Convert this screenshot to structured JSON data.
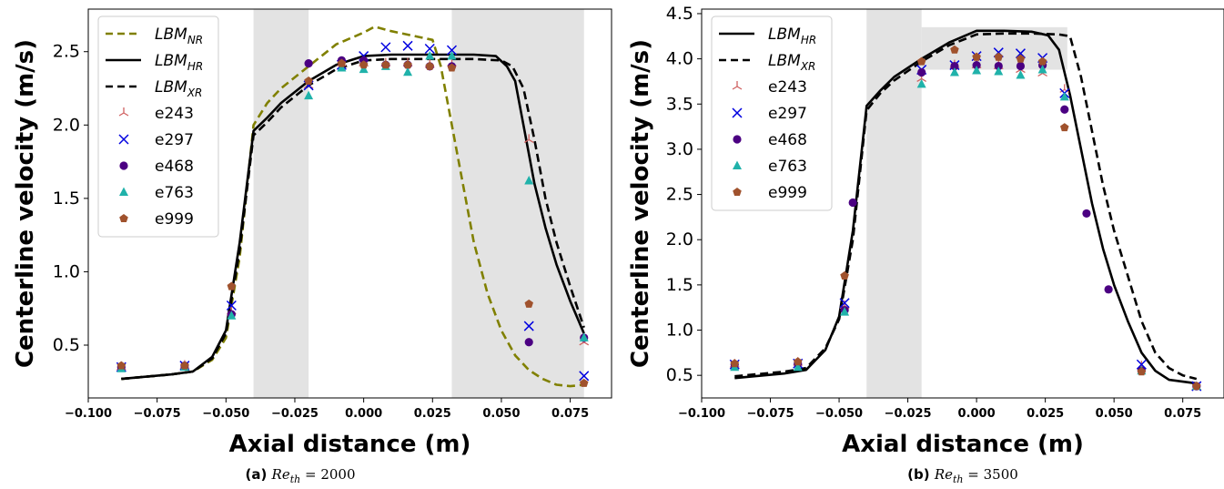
{
  "chart_data": [
    {
      "type": "line",
      "caption": {
        "tag": "(a)",
        "text": "Re",
        "sub": "th",
        "tail": " = 2000"
      },
      "xlabel": "Axial distance (m)",
      "ylabel": "Centerline velocity (m/s)",
      "xlim": [
        -0.1,
        0.09
      ],
      "ylim": [
        0.14,
        2.79
      ],
      "xticks": [
        -0.1,
        -0.075,
        -0.05,
        -0.025,
        0.0,
        0.025,
        0.05,
        0.075
      ],
      "xtick_labels": [
        "−0.100",
        "−0.075",
        "−0.050",
        "−0.025",
        "0.000",
        "0.025",
        "0.050",
        "0.075"
      ],
      "yticks": [
        0.5,
        1.0,
        1.5,
        2.0,
        2.5
      ],
      "ytick_labels": [
        "0.5",
        "1.0",
        "1.5",
        "2.0",
        "2.5"
      ],
      "shaded_regions": [
        {
          "x": [
            -0.04,
            -0.02
          ],
          "y": "full"
        },
        {
          "x": [
            0.032,
            0.08
          ],
          "y": "full"
        }
      ],
      "legend_position": "top-left",
      "legend": [
        {
          "label": "LBM",
          "sub": "NR",
          "kind": "line",
          "color": "#808000",
          "dash": "dashed"
        },
        {
          "label": "LBM",
          "sub": "HR",
          "kind": "line",
          "color": "#000000",
          "dash": "solid"
        },
        {
          "label": "LBM",
          "sub": "XR",
          "kind": "line",
          "color": "#000000",
          "dash": "dashed"
        },
        {
          "label": "e243",
          "kind": "marker",
          "marker": "tri",
          "color": "#d06060"
        },
        {
          "label": "e297",
          "kind": "marker",
          "marker": "x",
          "color": "#0000e0"
        },
        {
          "label": "e468",
          "kind": "marker",
          "marker": "circle",
          "color": "#4b0082"
        },
        {
          "label": "e763",
          "kind": "marker",
          "marker": "triangle",
          "color": "#20b2aa"
        },
        {
          "label": "e999",
          "kind": "marker",
          "marker": "pentagon",
          "color": "#a0522d"
        }
      ],
      "lines": [
        {
          "name": "LBM_NR",
          "color": "#808000",
          "dash": "dashed",
          "x": [
            -0.088,
            -0.07,
            -0.062,
            -0.055,
            -0.05,
            -0.045,
            -0.04,
            -0.035,
            -0.03,
            -0.02,
            -0.01,
            0.0,
            0.004,
            0.01,
            0.02,
            0.025,
            0.028,
            0.032,
            0.036,
            0.04,
            0.045,
            0.05,
            0.055,
            0.06,
            0.065,
            0.07,
            0.075,
            0.08
          ],
          "y": [
            0.27,
            0.3,
            0.32,
            0.4,
            0.55,
            1.1,
            2.0,
            2.15,
            2.25,
            2.4,
            2.55,
            2.63,
            2.67,
            2.64,
            2.6,
            2.58,
            2.4,
            2.0,
            1.6,
            1.2,
            0.85,
            0.6,
            0.43,
            0.33,
            0.27,
            0.23,
            0.22,
            0.23
          ]
        },
        {
          "name": "LBM_HR",
          "color": "#000000",
          "dash": "solid",
          "x": [
            -0.088,
            -0.07,
            -0.062,
            -0.055,
            -0.05,
            -0.045,
            -0.04,
            -0.035,
            -0.03,
            -0.02,
            -0.01,
            0.0,
            0.01,
            0.02,
            0.03,
            0.04,
            0.048,
            0.052,
            0.055,
            0.058,
            0.062,
            0.066,
            0.07,
            0.075,
            0.08
          ],
          "y": [
            0.27,
            0.3,
            0.32,
            0.42,
            0.6,
            1.2,
            1.96,
            2.05,
            2.15,
            2.3,
            2.41,
            2.47,
            2.48,
            2.48,
            2.48,
            2.48,
            2.47,
            2.4,
            2.3,
            2.0,
            1.6,
            1.3,
            1.05,
            0.8,
            0.58
          ]
        },
        {
          "name": "LBM_XR",
          "color": "#000000",
          "dash": "dashed",
          "x": [
            -0.088,
            -0.07,
            -0.062,
            -0.055,
            -0.05,
            -0.045,
            -0.04,
            -0.035,
            -0.03,
            -0.02,
            -0.01,
            0.0,
            0.01,
            0.02,
            0.03,
            0.04,
            0.05,
            0.054,
            0.058,
            0.062,
            0.066,
            0.07,
            0.075,
            0.08
          ],
          "y": [
            0.27,
            0.3,
            0.32,
            0.41,
            0.58,
            1.15,
            1.93,
            2.02,
            2.12,
            2.27,
            2.38,
            2.44,
            2.45,
            2.45,
            2.45,
            2.45,
            2.44,
            2.4,
            2.25,
            1.9,
            1.5,
            1.2,
            0.9,
            0.62
          ]
        }
      ],
      "scatter": [
        {
          "name": "e243",
          "marker": "tri",
          "color": "#d06060",
          "x": [
            -0.088,
            -0.065,
            -0.048,
            -0.02,
            -0.008,
            0.0,
            0.008,
            0.016,
            0.024,
            0.032,
            0.06,
            0.08
          ],
          "y": [
            0.35,
            0.36,
            0.73,
            2.27,
            2.42,
            2.42,
            2.42,
            2.42,
            2.41,
            2.42,
            1.9,
            0.52
          ]
        },
        {
          "name": "e297",
          "marker": "x",
          "color": "#0000e0",
          "x": [
            -0.088,
            -0.065,
            -0.048,
            -0.02,
            -0.008,
            0.0,
            0.008,
            0.016,
            0.024,
            0.032,
            0.06,
            0.08
          ],
          "y": [
            0.35,
            0.36,
            0.77,
            2.27,
            2.41,
            2.47,
            2.53,
            2.54,
            2.52,
            2.51,
            0.63,
            0.29
          ]
        },
        {
          "name": "e468",
          "marker": "circle",
          "color": "#4b0082",
          "x": [
            -0.088,
            -0.065,
            -0.048,
            -0.02,
            -0.008,
            0.0,
            0.008,
            0.016,
            0.024,
            0.032,
            0.06,
            0.08
          ],
          "y": [
            0.35,
            0.36,
            0.71,
            2.42,
            2.44,
            2.44,
            2.41,
            2.41,
            2.4,
            2.4,
            0.52,
            0.55
          ]
        },
        {
          "name": "e763",
          "marker": "triangle",
          "color": "#20b2aa",
          "x": [
            -0.088,
            -0.065,
            -0.048,
            -0.02,
            -0.008,
            0.0,
            0.008,
            0.016,
            0.024,
            0.032,
            0.06,
            0.08
          ],
          "y": [
            0.34,
            0.35,
            0.7,
            2.2,
            2.39,
            2.38,
            2.4,
            2.36,
            2.47,
            2.47,
            1.62,
            0.55
          ]
        },
        {
          "name": "e999",
          "marker": "pentagon",
          "color": "#a0522d",
          "x": [
            -0.088,
            -0.065,
            -0.048,
            -0.02,
            -0.008,
            0.0,
            0.008,
            0.016,
            0.024,
            0.032,
            0.06,
            0.08
          ],
          "y": [
            0.36,
            0.36,
            0.9,
            2.3,
            2.42,
            2.41,
            2.41,
            2.41,
            2.4,
            2.39,
            0.78,
            0.24
          ]
        }
      ]
    },
    {
      "type": "line",
      "caption": {
        "tag": "(b)",
        "text": "Re",
        "sub": "th",
        "tail": " = 3500"
      },
      "xlabel": "Axial distance (m)",
      "ylabel": "Centerline velocity (m/s)",
      "xlim": [
        -0.1,
        0.09
      ],
      "ylim": [
        0.25,
        4.55
      ],
      "xticks": [
        -0.1,
        -0.075,
        -0.05,
        -0.025,
        0.0,
        0.025,
        0.05,
        0.075
      ],
      "xtick_labels": [
        "−0.100",
        "−0.075",
        "−0.050",
        "−0.025",
        "0.000",
        "0.025",
        "0.050",
        "0.075"
      ],
      "yticks": [
        0.5,
        1.0,
        1.5,
        2.0,
        2.5,
        3.0,
        3.5,
        4.0,
        4.5
      ],
      "ytick_labels": [
        "0.5",
        "1.0",
        "1.5",
        "2.0",
        "2.5",
        "3.0",
        "3.5",
        "4.0",
        "4.5"
      ],
      "shaded_regions": [
        {
          "x": [
            -0.04,
            -0.02
          ],
          "y": "full"
        },
        {
          "x": [
            -0.02,
            0.033
          ],
          "y": [
            3.88,
            4.35
          ]
        }
      ],
      "legend_position": "top-left",
      "legend": [
        {
          "label": "LBM",
          "sub": "HR",
          "kind": "line",
          "color": "#000000",
          "dash": "solid"
        },
        {
          "label": "LBM",
          "sub": "XR",
          "kind": "line",
          "color": "#000000",
          "dash": "dashed"
        },
        {
          "label": "e243",
          "kind": "marker",
          "marker": "tri",
          "color": "#d06060"
        },
        {
          "label": "e297",
          "kind": "marker",
          "marker": "x",
          "color": "#0000e0"
        },
        {
          "label": "e468",
          "kind": "marker",
          "marker": "circle",
          "color": "#4b0082"
        },
        {
          "label": "e763",
          "kind": "marker",
          "marker": "triangle",
          "color": "#20b2aa"
        },
        {
          "label": "e999",
          "kind": "marker",
          "marker": "pentagon",
          "color": "#a0522d"
        }
      ],
      "lines": [
        {
          "name": "LBM_HR",
          "color": "#000000",
          "dash": "solid",
          "x": [
            -0.088,
            -0.07,
            -0.062,
            -0.055,
            -0.05,
            -0.045,
            -0.04,
            -0.035,
            -0.03,
            -0.02,
            -0.01,
            0.0,
            0.01,
            0.02,
            0.026,
            0.03,
            0.034,
            0.038,
            0.042,
            0.046,
            0.05,
            0.055,
            0.06,
            0.065,
            0.07,
            0.075,
            0.08
          ],
          "y": [
            0.47,
            0.52,
            0.56,
            0.78,
            1.15,
            2.1,
            3.48,
            3.65,
            3.8,
            4.0,
            4.18,
            4.31,
            4.31,
            4.3,
            4.26,
            4.1,
            3.6,
            3.0,
            2.4,
            1.9,
            1.5,
            1.1,
            0.75,
            0.55,
            0.45,
            0.43,
            0.41
          ]
        },
        {
          "name": "LBM_XR",
          "color": "#000000",
          "dash": "dashed",
          "x": [
            -0.088,
            -0.07,
            -0.062,
            -0.055,
            -0.05,
            -0.045,
            -0.04,
            -0.035,
            -0.03,
            -0.02,
            -0.01,
            0.0,
            0.01,
            0.02,
            0.03,
            0.034,
            0.038,
            0.042,
            0.046,
            0.05,
            0.055,
            0.06,
            0.065,
            0.07,
            0.075,
            0.08
          ],
          "y": [
            0.49,
            0.54,
            0.58,
            0.8,
            1.12,
            2.0,
            3.43,
            3.62,
            3.76,
            3.97,
            4.15,
            4.27,
            4.28,
            4.28,
            4.27,
            4.25,
            3.8,
            3.2,
            2.6,
            2.1,
            1.6,
            1.1,
            0.75,
            0.58,
            0.5,
            0.46
          ]
        }
      ],
      "scatter": [
        {
          "name": "e243",
          "marker": "tri",
          "color": "#d06060",
          "x": [
            -0.088,
            -0.065,
            -0.048,
            -0.02,
            -0.008,
            0.0,
            0.008,
            0.016,
            0.024,
            0.032,
            0.06,
            0.08
          ],
          "y": [
            0.62,
            0.64,
            1.27,
            3.78,
            3.93,
            3.93,
            3.92,
            3.88,
            3.84,
            3.66,
            0.6,
            0.37
          ]
        },
        {
          "name": "e297",
          "marker": "x",
          "color": "#0000e0",
          "x": [
            -0.088,
            -0.065,
            -0.048,
            -0.02,
            -0.008,
            0.0,
            0.008,
            0.016,
            0.024,
            0.032,
            0.06,
            0.08
          ],
          "y": [
            0.62,
            0.63,
            1.3,
            3.88,
            3.93,
            4.03,
            4.07,
            4.06,
            4.01,
            3.62,
            0.62,
            0.38
          ]
        },
        {
          "name": "e468",
          "marker": "circle",
          "color": "#4b0082",
          "x": [
            -0.088,
            -0.065,
            -0.048,
            -0.045,
            -0.02,
            -0.008,
            0.0,
            0.008,
            0.016,
            0.024,
            0.032,
            0.04,
            0.048,
            0.06,
            0.08
          ],
          "y": [
            0.62,
            0.63,
            1.22,
            2.41,
            3.85,
            3.92,
            3.93,
            3.92,
            3.92,
            3.93,
            3.44,
            2.29,
            1.45,
            0.55,
            0.38
          ]
        },
        {
          "name": "e763",
          "marker": "triangle",
          "color": "#20b2aa",
          "x": [
            -0.088,
            -0.065,
            -0.048,
            -0.02,
            -0.008,
            0.0,
            0.008,
            0.016,
            0.024,
            0.032,
            0.06,
            0.08
          ],
          "y": [
            0.59,
            0.59,
            1.2,
            3.72,
            3.85,
            3.87,
            3.86,
            3.82,
            3.88,
            3.58,
            0.55,
            0.38
          ]
        },
        {
          "name": "e999",
          "marker": "pentagon",
          "color": "#a0522d",
          "x": [
            -0.088,
            -0.065,
            -0.048,
            -0.02,
            -0.008,
            0.0,
            0.008,
            0.016,
            0.024,
            0.032,
            0.06,
            0.08
          ],
          "y": [
            0.63,
            0.65,
            1.6,
            3.97,
            4.1,
            4.02,
            4.02,
            4.0,
            3.97,
            3.24,
            0.54,
            0.38
          ]
        }
      ]
    }
  ]
}
